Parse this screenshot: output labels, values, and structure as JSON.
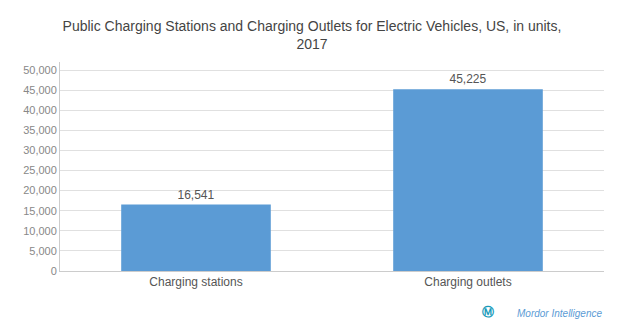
{
  "chart_data": {
    "type": "bar",
    "title": "Public Charging Stations and Charging Outlets for Electric Vehicles, US, in units,\n2017",
    "categories": [
      "Charging stations",
      "Charging outlets"
    ],
    "values": [
      16541,
      45225
    ],
    "value_labels": [
      "16,541",
      "45,225"
    ],
    "data_labels": true,
    "color": "#5b9bd5",
    "ylim": [
      0,
      52000
    ],
    "yticks": [
      0,
      {
        "value": 5000,
        "label": "5,000"
      },
      {
        "value": 10000,
        "label": "10,000"
      },
      {
        "value": 15000,
        "label": "15,000"
      },
      {
        "value": 20000,
        "label": "20,000"
      },
      {
        "value": 25000,
        "label": "25,000"
      },
      {
        "value": 30000,
        "label": "30,000"
      },
      {
        "value": 35000,
        "label": "35,000"
      },
      {
        "value": 40000,
        "label": "40,000"
      },
      {
        "value": 45000,
        "label": "45,000"
      },
      {
        "value": 50000,
        "label": "50,000"
      }
    ],
    "grid": true,
    "annotations": [
      "Ⓜ",
      "Mordor Intelligence"
    ]
  }
}
